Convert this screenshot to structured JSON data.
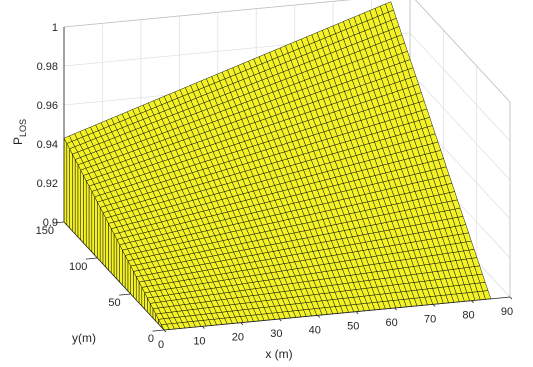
{
  "chart_data": {
    "type": "surface",
    "title": "",
    "xlabel": "x (m)",
    "ylabel": "y(m)",
    "zlabel_main": "P",
    "zlabel_sub": "LOS",
    "xlim": [
      0,
      90
    ],
    "ylim": [
      0,
      150
    ],
    "zlim": [
      0.9,
      1.0
    ],
    "xticks": [
      "0",
      "10",
      "20",
      "30",
      "40",
      "50",
      "60",
      "70",
      "80",
      "90"
    ],
    "yticks": [
      "0",
      "50",
      "100",
      "150"
    ],
    "zticks": [
      "0.9",
      "0.92",
      "0.94",
      "0.96",
      "0.98",
      "1"
    ],
    "grid": true,
    "face_color": "#f2f227",
    "edge_color": "#000000",
    "x": [
      0,
      85
    ],
    "y": [
      0,
      150
    ],
    "corner_values": [
      {
        "x": 0,
        "y": 0,
        "z": 0.9
      },
      {
        "x": 0,
        "y": 150,
        "z": 0.943
      },
      {
        "x": 85,
        "y": 0,
        "z": 0.9
      },
      {
        "x": 85,
        "y": 150,
        "z": 0.997
      }
    ]
  }
}
